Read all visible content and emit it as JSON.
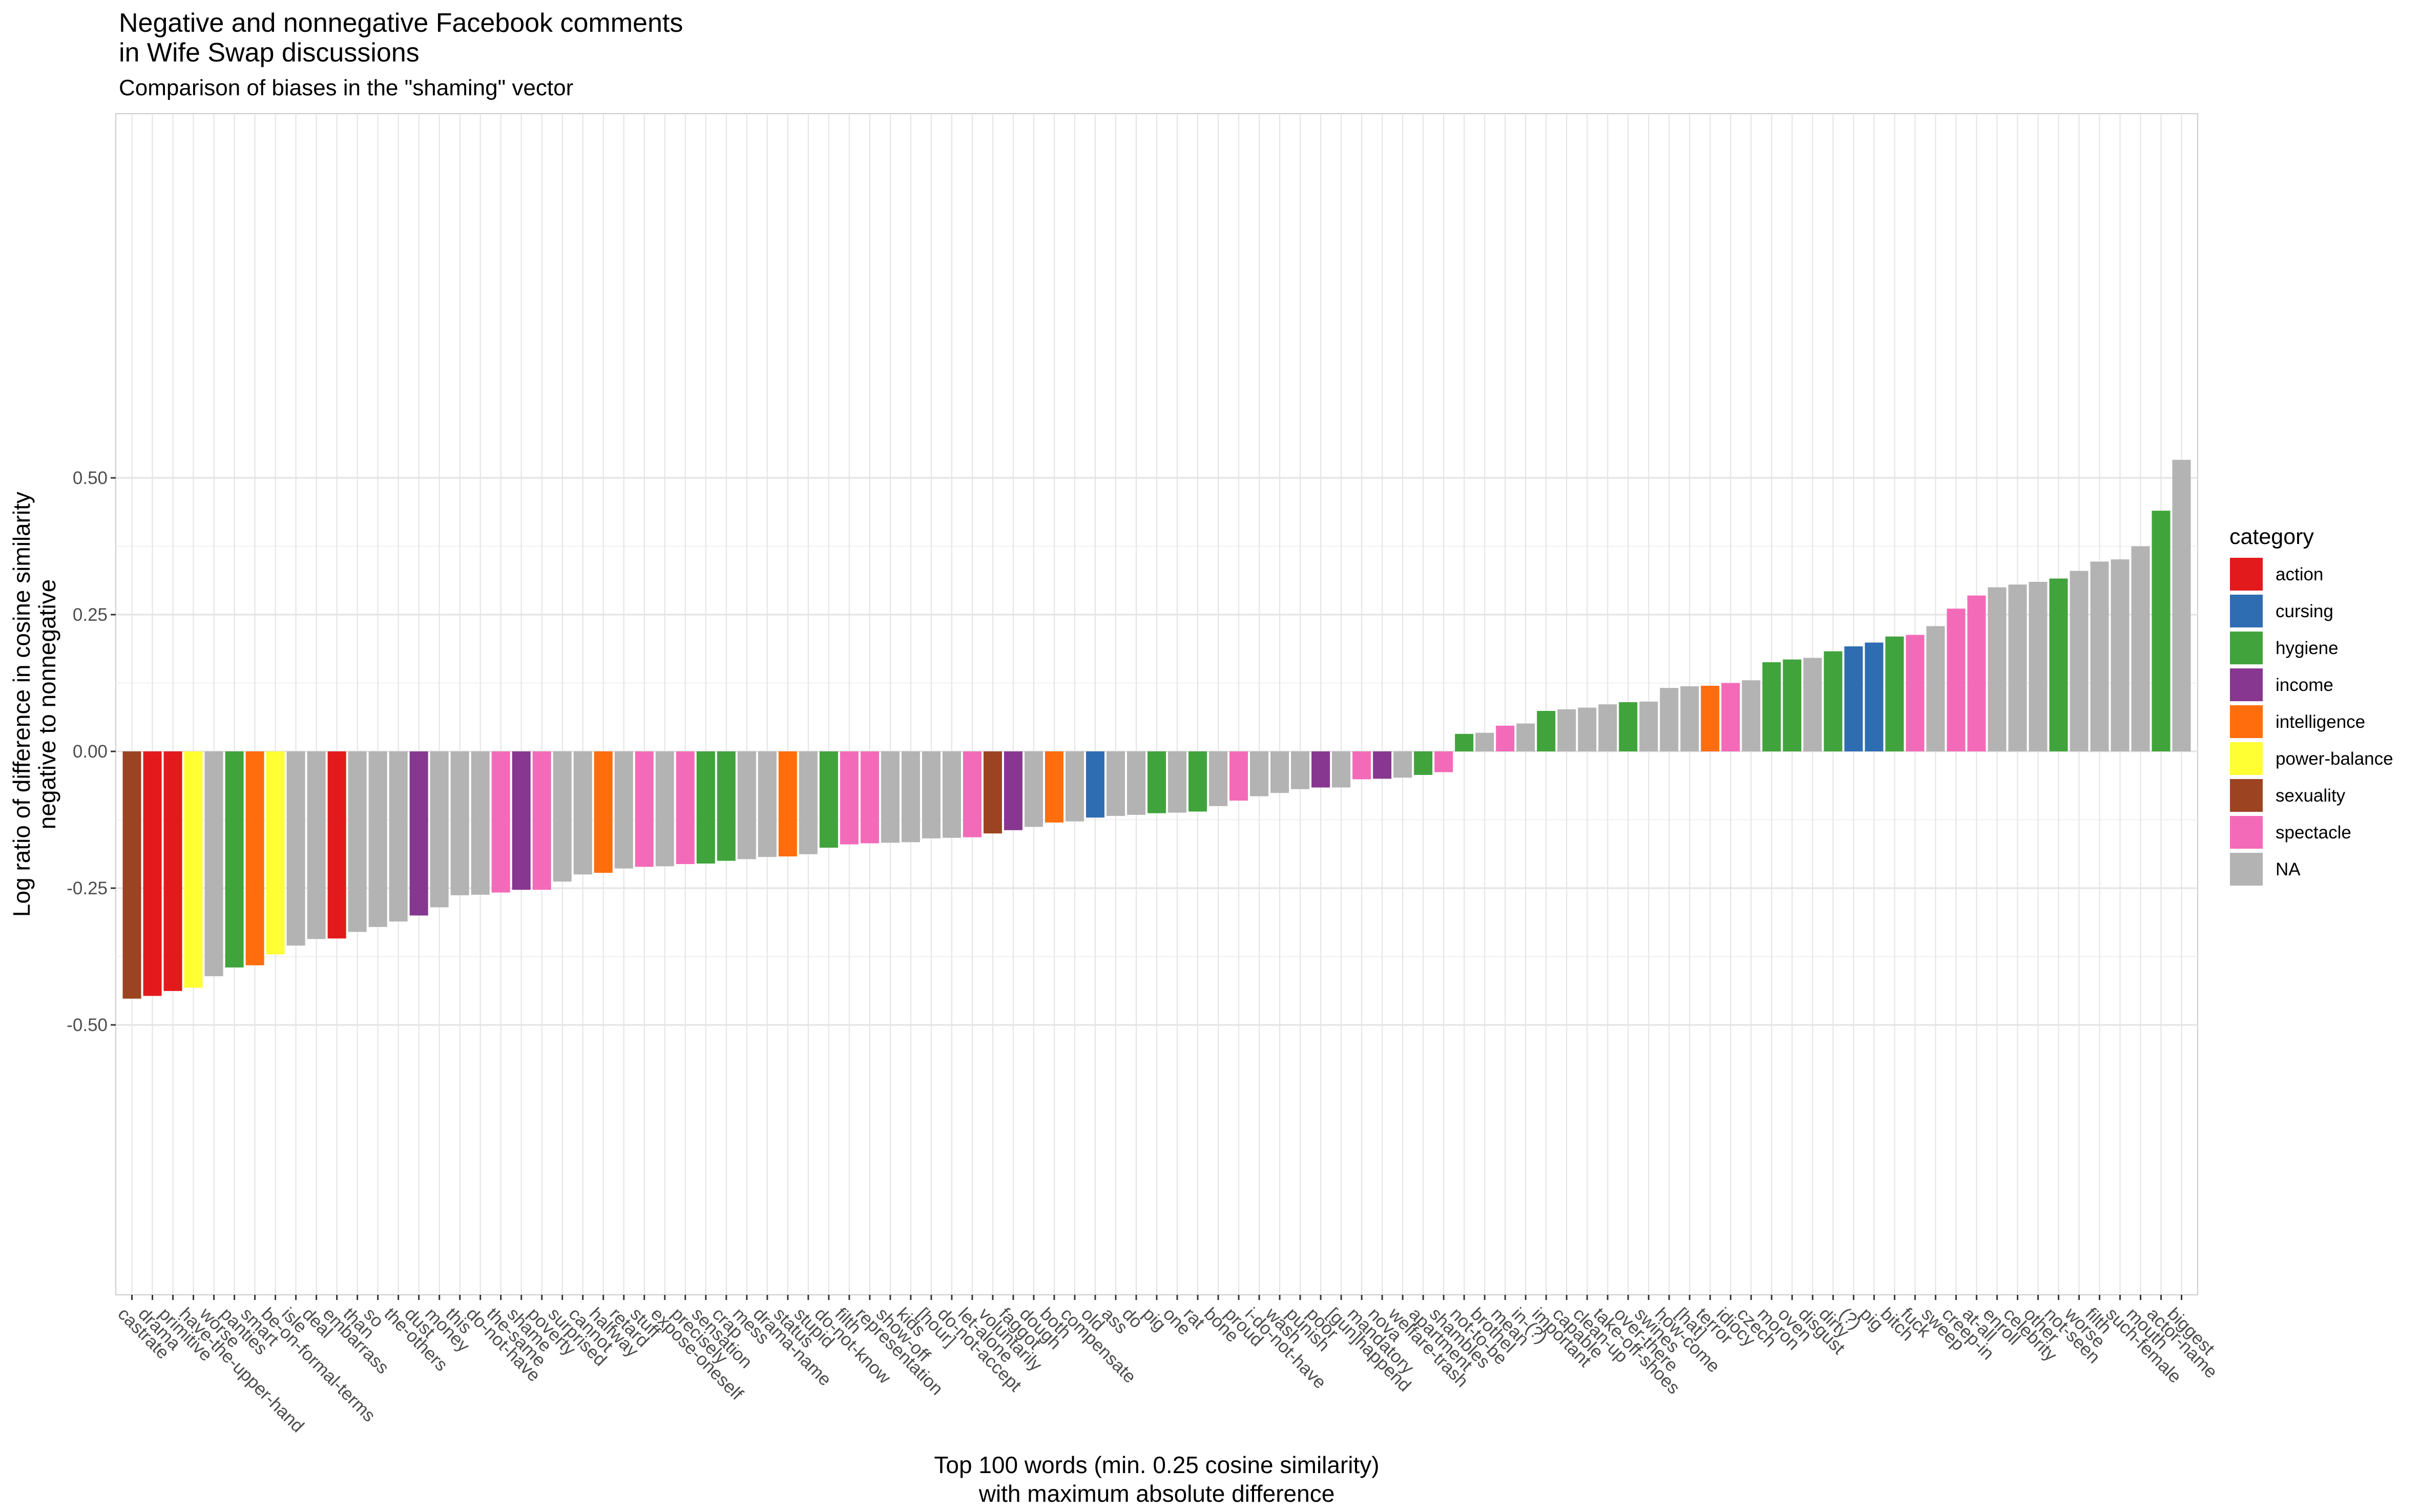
{
  "chart_data": {
    "type": "bar",
    "title_lines": [
      "Negative and nonnegative Facebook comments",
      "in Wife Swap discussions"
    ],
    "subtitle": "Comparison of biases in the \"shaming\" vector",
    "xlabel_lines": [
      "Top 100 words (min. 0.25 cosine similarity)",
      "with maximum absolute difference"
    ],
    "ylabel_lines": [
      "Log ratio of difference in cosine similarity",
      "negative to nonnegative"
    ],
    "ylim": [
      -0.5,
      0.5
    ],
    "yticks": [
      -0.5,
      -0.25,
      0.0,
      0.25,
      0.5
    ],
    "ytick_labels": [
      "-0.50",
      "-0.25",
      "0.00",
      "0.25",
      "0.50"
    ],
    "grid": true,
    "legend_position": "right",
    "legend": {
      "title": "category",
      "entries": [
        {
          "key": "action",
          "label": "action",
          "color": "#e31a1c"
        },
        {
          "key": "cursing",
          "label": "cursing",
          "color": "#2f6db3"
        },
        {
          "key": "hygiene",
          "label": "hygiene",
          "color": "#41a33c"
        },
        {
          "key": "income",
          "label": "income",
          "color": "#87378f"
        },
        {
          "key": "intelligence",
          "label": "intelligence",
          "color": "#ff6d0d"
        },
        {
          "key": "power-balance",
          "label": "power-balance",
          "color": "#ffff33"
        },
        {
          "key": "sexuality",
          "label": "sexuality",
          "color": "#9c4322"
        },
        {
          "key": "spectacle",
          "label": "spectacle",
          "color": "#f36bb8"
        },
        {
          "key": "NA",
          "label": "NA",
          "color": "#b3b3b3"
        }
      ]
    },
    "bars": [
      {
        "word": "castrate",
        "value": -0.452,
        "category": "sexuality"
      },
      {
        "word": "drama",
        "value": -0.447,
        "category": "action"
      },
      {
        "word": "primitive",
        "value": -0.438,
        "category": "action"
      },
      {
        "word": "have-the-upper-hand",
        "value": -0.432,
        "category": "power-balance"
      },
      {
        "word": "worse",
        "value": -0.411,
        "category": "NA"
      },
      {
        "word": "panties",
        "value": -0.395,
        "category": "hygiene"
      },
      {
        "word": "smart",
        "value": -0.391,
        "category": "intelligence"
      },
      {
        "word": "be-on-formal-terms",
        "value": -0.371,
        "category": "power-balance"
      },
      {
        "word": "isle",
        "value": -0.355,
        "category": "NA"
      },
      {
        "word": "deal",
        "value": -0.343,
        "category": "NA"
      },
      {
        "word": "embarrass",
        "value": -0.342,
        "category": "action"
      },
      {
        "word": "than",
        "value": -0.33,
        "category": "NA"
      },
      {
        "word": "so",
        "value": -0.321,
        "category": "NA"
      },
      {
        "word": "the-others",
        "value": -0.311,
        "category": "NA"
      },
      {
        "word": "dust",
        "value": -0.3,
        "category": "income"
      },
      {
        "word": "money",
        "value": -0.285,
        "category": "NA"
      },
      {
        "word": "this",
        "value": -0.263,
        "category": "NA"
      },
      {
        "word": "do-not-have",
        "value": -0.262,
        "category": "NA"
      },
      {
        "word": "the-same",
        "value": -0.258,
        "category": "spectacle"
      },
      {
        "word": "shame",
        "value": -0.253,
        "category": "income"
      },
      {
        "word": "poverty",
        "value": -0.253,
        "category": "spectacle"
      },
      {
        "word": "surprised",
        "value": -0.238,
        "category": "NA"
      },
      {
        "word": "cannot",
        "value": -0.225,
        "category": "NA"
      },
      {
        "word": "halfway",
        "value": -0.222,
        "category": "intelligence"
      },
      {
        "word": "retard",
        "value": -0.214,
        "category": "NA"
      },
      {
        "word": "stuff",
        "value": -0.211,
        "category": "spectacle"
      },
      {
        "word": "expose-oneself",
        "value": -0.21,
        "category": "NA"
      },
      {
        "word": "precisely",
        "value": -0.206,
        "category": "spectacle"
      },
      {
        "word": "sensation",
        "value": -0.205,
        "category": "hygiene"
      },
      {
        "word": "crap",
        "value": -0.2,
        "category": "hygiene"
      },
      {
        "word": "mess",
        "value": -0.197,
        "category": "NA"
      },
      {
        "word": "drama-name",
        "value": -0.193,
        "category": "NA"
      },
      {
        "word": "status",
        "value": -0.192,
        "category": "intelligence"
      },
      {
        "word": "stupid",
        "value": -0.188,
        "category": "NA"
      },
      {
        "word": "do-not-know",
        "value": -0.176,
        "category": "hygiene"
      },
      {
        "word": "filth",
        "value": -0.17,
        "category": "spectacle"
      },
      {
        "word": "representation",
        "value": -0.168,
        "category": "spectacle"
      },
      {
        "word": "show-off",
        "value": -0.167,
        "category": "NA"
      },
      {
        "word": "kids",
        "value": -0.166,
        "category": "NA"
      },
      {
        "word": "[hour]",
        "value": -0.159,
        "category": "NA"
      },
      {
        "word": "do-not-accept",
        "value": -0.158,
        "category": "NA"
      },
      {
        "word": "let-alone",
        "value": -0.157,
        "category": "spectacle"
      },
      {
        "word": "voluntarily",
        "value": -0.15,
        "category": "sexuality"
      },
      {
        "word": "faggot",
        "value": -0.144,
        "category": "income"
      },
      {
        "word": "dough",
        "value": -0.138,
        "category": "NA"
      },
      {
        "word": "both",
        "value": -0.13,
        "category": "intelligence"
      },
      {
        "word": "compensate",
        "value": -0.128,
        "category": "NA"
      },
      {
        "word": "old",
        "value": -0.121,
        "category": "cursing"
      },
      {
        "word": "ass",
        "value": -0.118,
        "category": "NA"
      },
      {
        "word": "do",
        "value": -0.116,
        "category": "NA"
      },
      {
        "word": "pig",
        "value": -0.113,
        "category": "hygiene"
      },
      {
        "word": "one",
        "value": -0.112,
        "category": "NA"
      },
      {
        "word": "rat",
        "value": -0.11,
        "category": "hygiene"
      },
      {
        "word": "bone",
        "value": -0.1,
        "category": "NA"
      },
      {
        "word": "proud",
        "value": -0.09,
        "category": "spectacle"
      },
      {
        "word": "i-do-not-have",
        "value": -0.082,
        "category": "NA"
      },
      {
        "word": "wash",
        "value": -0.076,
        "category": "NA"
      },
      {
        "word": "punish",
        "value": -0.069,
        "category": "NA"
      },
      {
        "word": "poor",
        "value": -0.066,
        "category": "income"
      },
      {
        "word": "[gun]happend",
        "value": -0.066,
        "category": "NA"
      },
      {
        "word": "mandatory",
        "value": -0.051,
        "category": "spectacle"
      },
      {
        "word": "nova",
        "value": -0.05,
        "category": "income"
      },
      {
        "word": "welfare-trash",
        "value": -0.048,
        "category": "NA"
      },
      {
        "word": "apartment",
        "value": -0.043,
        "category": "hygiene"
      },
      {
        "word": "shambles",
        "value": -0.038,
        "category": "spectacle"
      },
      {
        "word": "not-to-be",
        "value": 0.032,
        "category": "hygiene"
      },
      {
        "word": "brothel",
        "value": 0.034,
        "category": "NA"
      },
      {
        "word": "mean",
        "value": 0.047,
        "category": "spectacle"
      },
      {
        "word": "in-(?)",
        "value": 0.051,
        "category": "NA"
      },
      {
        "word": "important",
        "value": 0.074,
        "category": "hygiene"
      },
      {
        "word": "capable",
        "value": 0.077,
        "category": "NA"
      },
      {
        "word": "clean-up",
        "value": 0.08,
        "category": "NA"
      },
      {
        "word": "take-off-shoes",
        "value": 0.086,
        "category": "NA"
      },
      {
        "word": "over-there",
        "value": 0.09,
        "category": "hygiene"
      },
      {
        "word": "swines",
        "value": 0.091,
        "category": "NA"
      },
      {
        "word": "how-come",
        "value": 0.116,
        "category": "NA"
      },
      {
        "word": "[hat]",
        "value": 0.119,
        "category": "NA"
      },
      {
        "word": "terror",
        "value": 0.12,
        "category": "intelligence"
      },
      {
        "word": "idiocy",
        "value": 0.125,
        "category": "spectacle"
      },
      {
        "word": "czech",
        "value": 0.13,
        "category": "NA"
      },
      {
        "word": "moron",
        "value": 0.163,
        "category": "hygiene"
      },
      {
        "word": "oven",
        "value": 0.168,
        "category": "hygiene"
      },
      {
        "word": "disgust",
        "value": 0.171,
        "category": "NA"
      },
      {
        "word": "dirty",
        "value": 0.183,
        "category": "hygiene"
      },
      {
        "word": "(?)",
        "value": 0.192,
        "category": "cursing"
      },
      {
        "word": "pig",
        "value": 0.199,
        "category": "cursing"
      },
      {
        "word": "bitch",
        "value": 0.21,
        "category": "hygiene"
      },
      {
        "word": "fuck",
        "value": 0.213,
        "category": "spectacle"
      },
      {
        "word": "sweep",
        "value": 0.229,
        "category": "NA"
      },
      {
        "word": "creep-in",
        "value": 0.261,
        "category": "spectacle"
      },
      {
        "word": "at-all",
        "value": 0.285,
        "category": "spectacle"
      },
      {
        "word": "enroll",
        "value": 0.3,
        "category": "NA"
      },
      {
        "word": "celebrity",
        "value": 0.305,
        "category": "NA"
      },
      {
        "word": "other",
        "value": 0.31,
        "category": "NA"
      },
      {
        "word": "not-seen",
        "value": 0.316,
        "category": "hygiene"
      },
      {
        "word": "worse",
        "value": 0.33,
        "category": "NA"
      },
      {
        "word": "filth",
        "value": 0.347,
        "category": "NA"
      },
      {
        "word": "such-female",
        "value": 0.351,
        "category": "NA"
      },
      {
        "word": "mouth",
        "value": 0.375,
        "category": "NA"
      },
      {
        "word": "actor-name",
        "value": 0.44,
        "category": "hygiene"
      },
      {
        "word": "biggest",
        "value": 0.533,
        "category": "NA"
      }
    ]
  }
}
